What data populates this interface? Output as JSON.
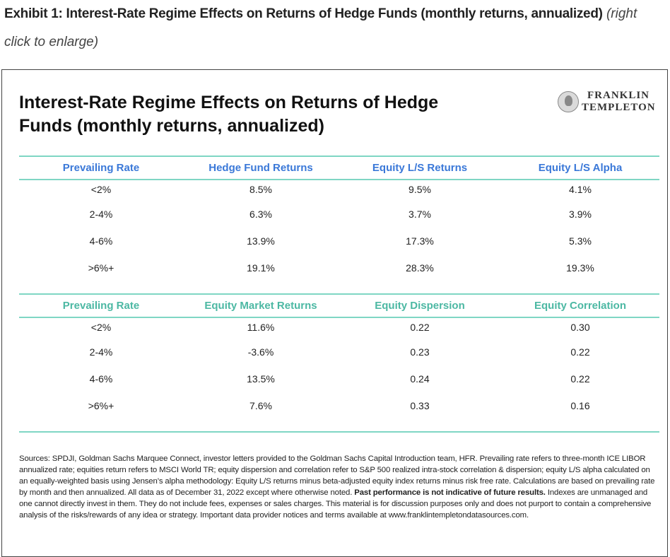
{
  "caption": {
    "bold": "Exhibit 1: Interest-Rate Regime Effects on Returns of Hedge Funds (monthly returns, annualized)",
    "hint": "(right click to enlarge)"
  },
  "chart": {
    "title_line1": "Interest-Rate Regime Effects on Returns of Hedge",
    "title_line2": "Funds (monthly returns, annualized)",
    "logo_line1": "FRANKLIN",
    "logo_line2": "TEMPLETON"
  },
  "table1": {
    "headers": [
      "Prevailing Rate",
      "Hedge Fund Returns",
      "Equity L/S Returns",
      "Equity L/S Alpha"
    ],
    "rows": [
      [
        "<2%",
        "8.5%",
        "9.5%",
        "4.1%"
      ],
      [
        "2-4%",
        "6.3%",
        "3.7%",
        "3.9%"
      ],
      [
        "4-6%",
        "13.9%",
        "17.3%",
        "5.3%"
      ],
      [
        ">6%+",
        "19.1%",
        "28.3%",
        "19.3%"
      ]
    ]
  },
  "table2": {
    "headers": [
      "Prevailing Rate",
      "Equity Market Returns",
      "Equity Dispersion",
      "Equity Correlation"
    ],
    "rows": [
      [
        "<2%",
        "11.6%",
        "0.22",
        "0.30"
      ],
      [
        "2-4%",
        "-3.6%",
        "0.23",
        "0.22"
      ],
      [
        "4-6%",
        "13.5%",
        "0.24",
        "0.22"
      ],
      [
        ">6%+",
        "7.6%",
        "0.33",
        "0.16"
      ]
    ]
  },
  "sources": {
    "part1": "Sources: SPDJI, Goldman Sachs Marquee Connect, investor letters provided to the Goldman Sachs Capital Introduction team, HFR. Prevailing rate refers to three-month ICE LIBOR annualized rate; equities return refers to MSCI World TR; equity dispersion and correlation refer to S&P 500 realized intra-stock correlation & dispersion; equity L/S alpha calculated on an equally-weighted basis using Jensen’s alpha methodology: Equity L/S returns minus beta-adjusted equity index returns minus risk free rate. Calculations are based on prevailing rate by month and then annualized. All data as of December 31, 2022 except where otherwise noted.",
    "bold": "Past performance is not indicative of future results.",
    "part2": "Indexes are unmanaged and one cannot directly invest in them. They do not include fees, expenses or sales charges. This material is for discussion purposes only and does not purport to contain a comprehensive analysis of the risks/rewards of any idea or strategy. Important data provider notices and terms available at www.franklintempletondatasources.com."
  }
}
